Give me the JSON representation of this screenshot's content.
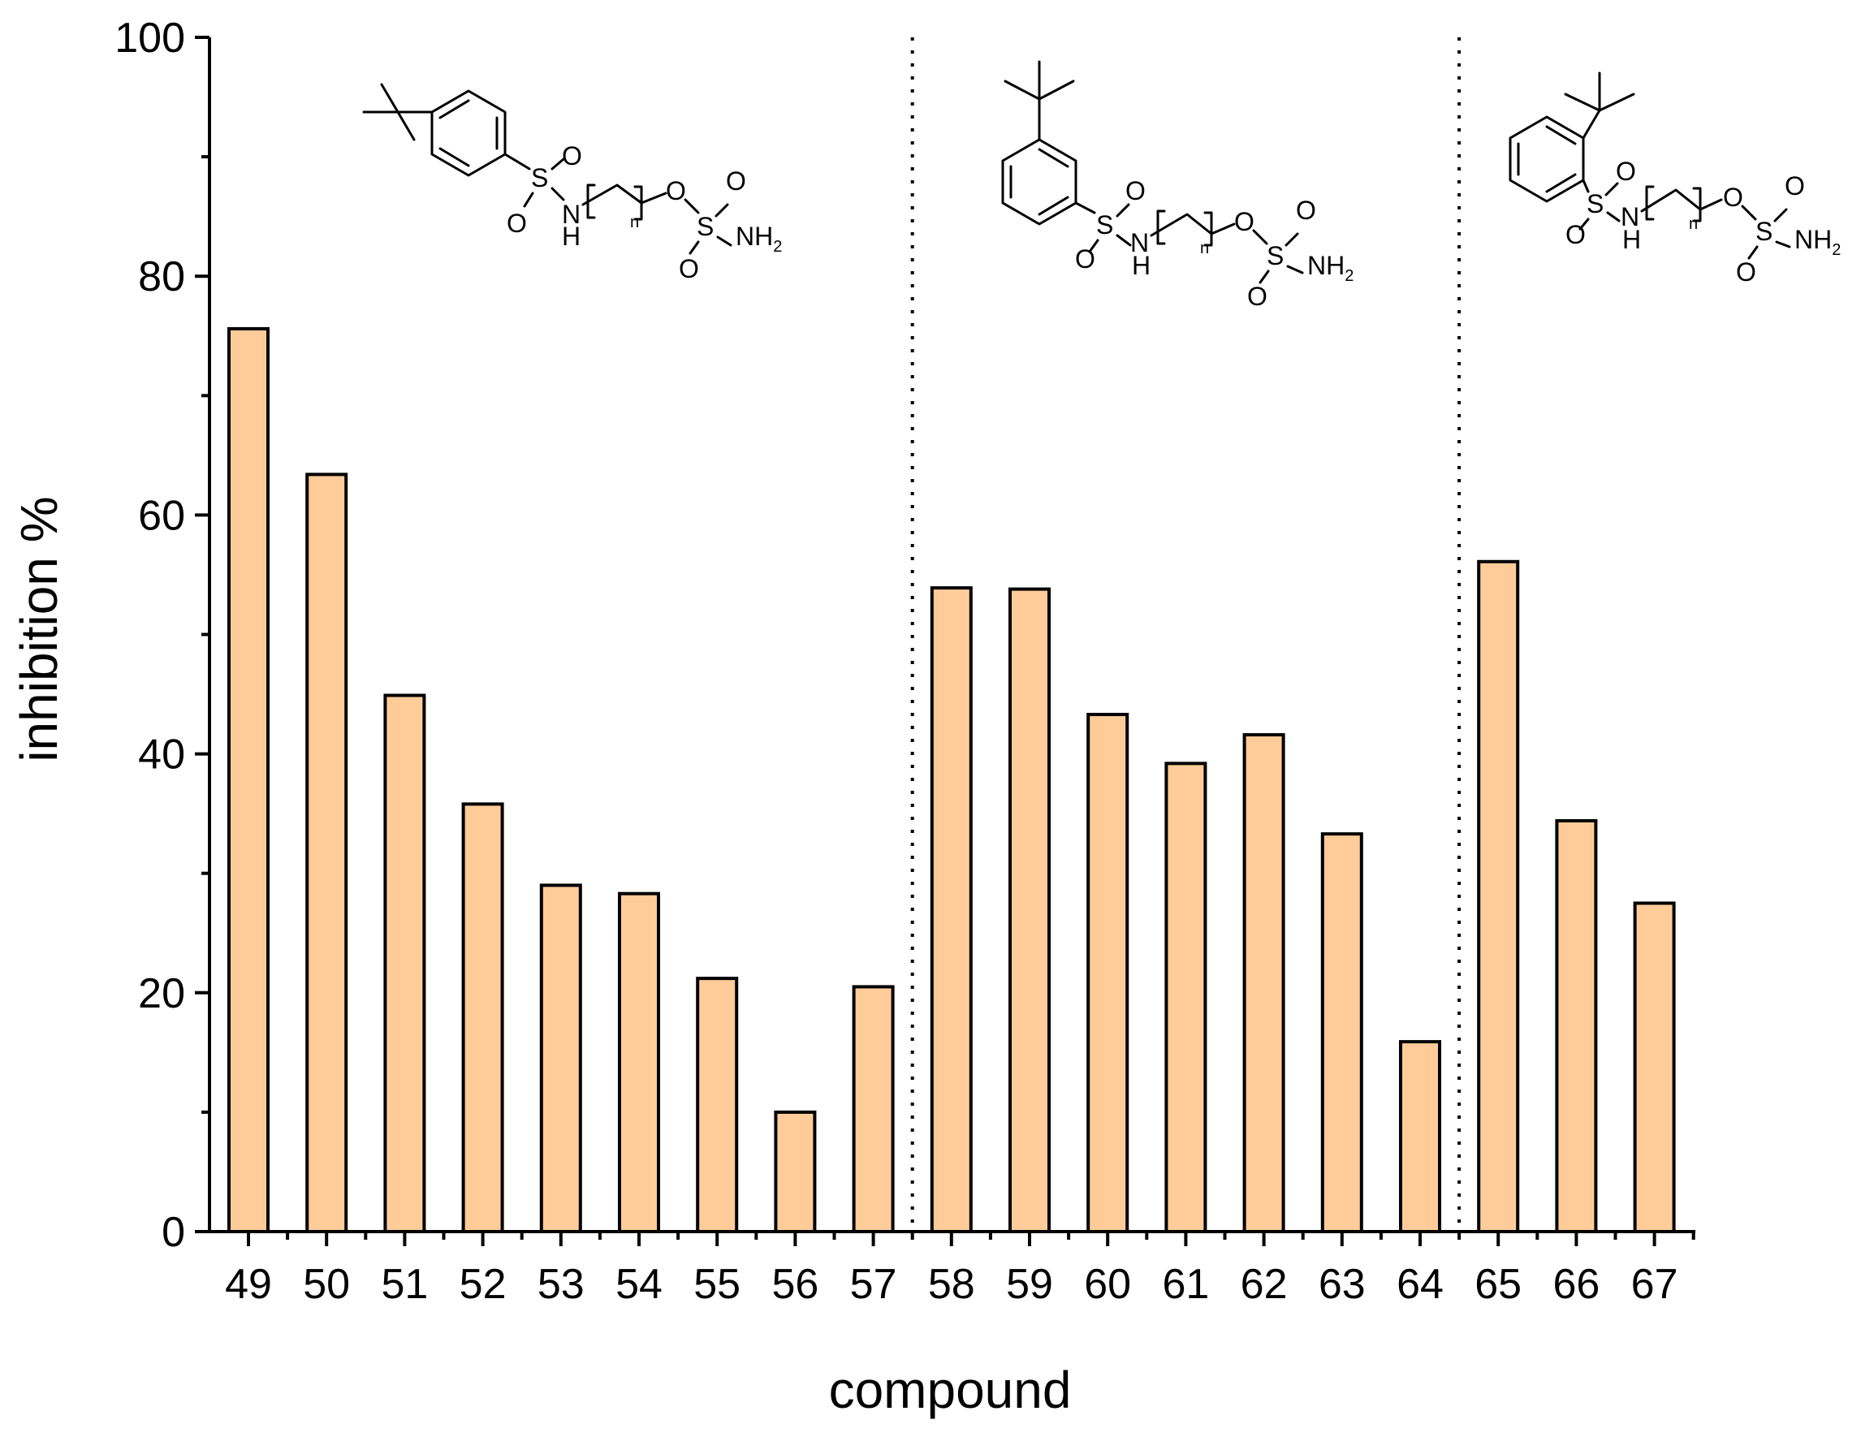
{
  "chart_data": {
    "type": "bar",
    "xlabel": "compound",
    "ylabel": "inhibition %",
    "ylim": [
      0,
      100
    ],
    "yticks": [
      0,
      20,
      40,
      60,
      80,
      100
    ],
    "grid": false,
    "bar_color": "#FFCC99",
    "categories": [
      "49",
      "50",
      "51",
      "52",
      "53",
      "54",
      "55",
      "56",
      "57",
      "58",
      "59",
      "60",
      "61",
      "62",
      "63",
      "64",
      "65",
      "66",
      "67"
    ],
    "values": [
      75.6,
      63.4,
      44.9,
      35.8,
      29.0,
      28.3,
      21.2,
      10.0,
      20.5,
      53.9,
      53.8,
      43.3,
      39.2,
      41.6,
      33.3,
      15.9,
      56.1,
      34.4,
      27.5
    ],
    "group_dividers_after": [
      "57",
      "64"
    ],
    "structure_labels": {
      "sulfonyl_o": "O",
      "sulfur": "S",
      "amide_n": "N",
      "amide_h": "H",
      "repeat_n": "n",
      "ether_o": "O",
      "amine": "NH",
      "amine_sub": "2"
    }
  }
}
